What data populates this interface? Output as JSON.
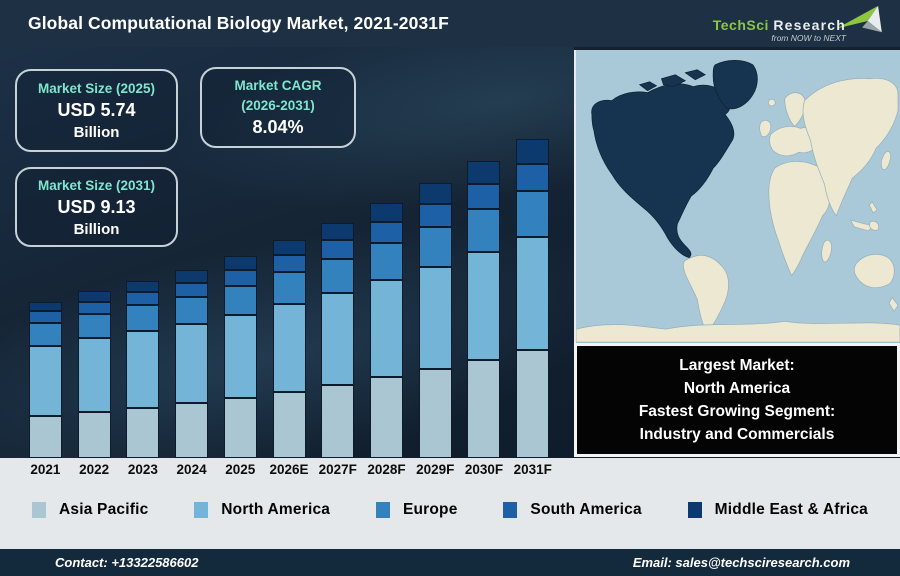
{
  "header": {
    "title": "Global Computational Biology Market, 2021-2031F",
    "logo_primary": "TechSci",
    "logo_secondary": "Research",
    "logo_tagline": "from NOW to NEXT"
  },
  "stat_boxes": [
    {
      "label": "Market Size (2025)",
      "value": "USD 5.74",
      "unit": "Billion"
    },
    {
      "label": "Market CAGR",
      "label2": "(2026-2031)",
      "value": "8.04%"
    },
    {
      "label": "Market Size (2031)",
      "value": "USD 9.13",
      "unit": "Billion"
    }
  ],
  "chart_data": {
    "type": "bar",
    "stacked": true,
    "title": "Global Computational Biology Market, 2021-2031F",
    "unit": "USD Billion",
    "categories": [
      "2021",
      "2022",
      "2023",
      "2024",
      "2025",
      "2026E",
      "2027F",
      "2028F",
      "2029F",
      "2030F",
      "2031F"
    ],
    "series": [
      {
        "name": "Asia Pacific",
        "color": "#aac6d3",
        "values": [
          1.2,
          1.32,
          1.44,
          1.56,
          1.7,
          1.88,
          2.08,
          2.3,
          2.53,
          2.79,
          3.08
        ]
      },
      {
        "name": "North America",
        "color": "#74b4d6",
        "values": [
          2.0,
          2.1,
          2.19,
          2.27,
          2.37,
          2.5,
          2.63,
          2.78,
          2.92,
          3.08,
          3.24
        ]
      },
      {
        "name": "Europe",
        "color": "#3381bd",
        "values": [
          0.65,
          0.69,
          0.74,
          0.78,
          0.83,
          0.9,
          0.97,
          1.05,
          1.13,
          1.23,
          1.32
        ]
      },
      {
        "name": "South America",
        "color": "#1d60a6",
        "values": [
          0.33,
          0.35,
          0.38,
          0.41,
          0.45,
          0.49,
          0.54,
          0.59,
          0.65,
          0.71,
          0.78
        ]
      },
      {
        "name": "Middle East & Africa",
        "color": "#0d3a6e",
        "values": [
          0.27,
          0.3,
          0.32,
          0.36,
          0.39,
          0.43,
          0.48,
          0.53,
          0.59,
          0.65,
          0.71
        ]
      }
    ],
    "totals": [
      4.45,
      4.76,
      5.07,
      5.38,
      5.74,
      6.2,
      6.7,
      7.25,
      7.82,
      8.46,
      9.13
    ],
    "ylim": [
      0,
      9.6
    ],
    "grid": false,
    "legend_position": "bottom",
    "annotations": {
      "market_size_2025": "USD 5.74 Billion",
      "market_cagr_2026_2031": "8.04%",
      "market_size_2031": "USD 9.13 Billion"
    }
  },
  "map": {
    "highlighted_region": "North America",
    "ocean_color": "#a9c9d8",
    "land_color": "#ece8d2",
    "highlight_color": "#16344f"
  },
  "callout": {
    "line1": "Largest Market:",
    "line2": "North America",
    "line3": "Fastest Growing Segment:",
    "line4": "Industry and Commercials"
  },
  "footer": {
    "contact": "Contact: +13322586602",
    "email": "Email: sales@techsciresearch.com"
  },
  "colors": {
    "title_bar": "#1d3044",
    "chart_background": "#152536",
    "accent_teal": "#7ee6cf",
    "logo_green": "#8dc63f",
    "strip_background": "#e4e8ea",
    "footer_background": "#132a3c"
  }
}
